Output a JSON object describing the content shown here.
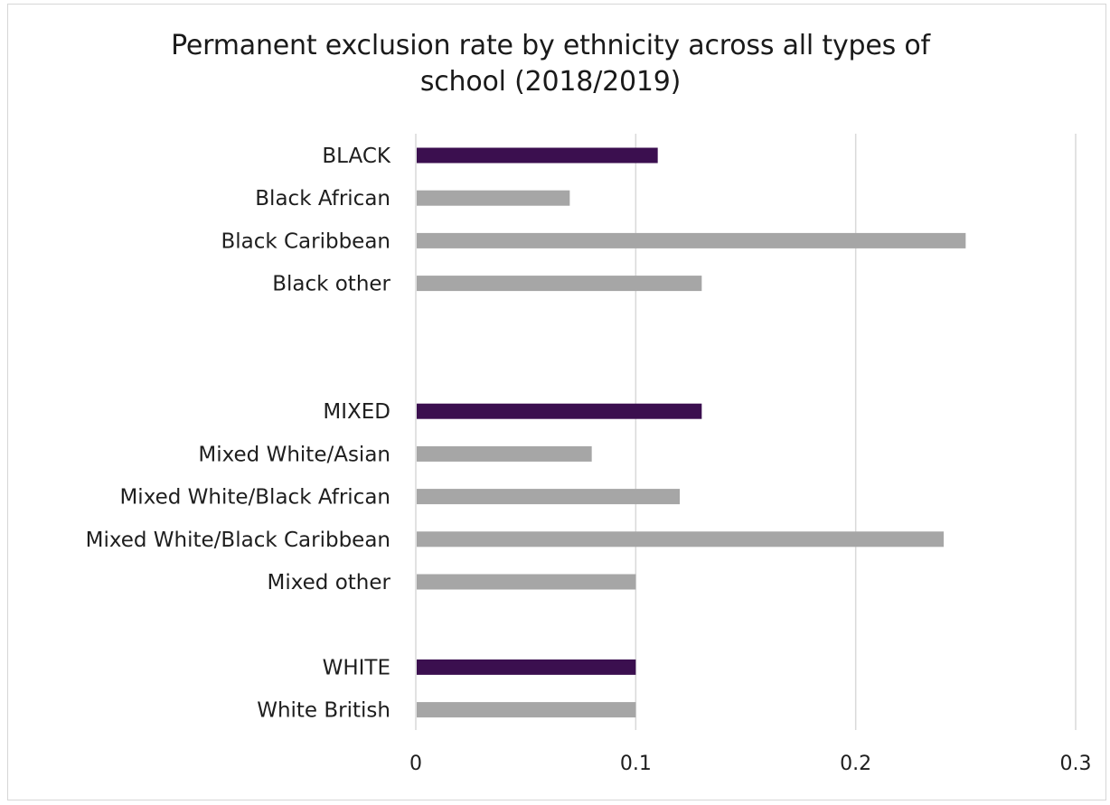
{
  "chart_data": {
    "type": "bar",
    "orientation": "horizontal",
    "title": "Permanent exclusion rate by ethnicity across all types of school (2018/2019)",
    "title_lines": [
      "Permanent exclusion rate by ethnicity across all types of",
      "school (2018/2019)"
    ],
    "xlabel": "",
    "ylabel": "",
    "xlim": [
      0,
      0.3
    ],
    "x_ticks": [
      "0",
      "0.1",
      "0.2",
      "0.3"
    ],
    "x_tick_values": [
      0,
      0.1,
      0.2,
      0.3
    ],
    "grid": "vertical",
    "categories": [
      "BLACK",
      "Black African",
      "Black Caribbean",
      "Black other",
      "",
      "",
      "MIXED",
      "Mixed White/Asian",
      "Mixed White/Black African",
      "Mixed White/Black Caribbean",
      "Mixed other",
      "",
      "WHITE",
      "White British"
    ],
    "values": [
      0.11,
      0.07,
      0.25,
      0.13,
      null,
      null,
      0.13,
      0.08,
      0.12,
      0.24,
      0.1,
      null,
      0.1,
      0.1
    ],
    "is_group_total": [
      true,
      false,
      false,
      false,
      false,
      false,
      true,
      false,
      false,
      false,
      false,
      false,
      true,
      false
    ],
    "colors": {
      "group_total": "#3b0f4f",
      "subgroup": "#a6a6a6",
      "gridline": "#d9d9d9",
      "text": "#1e1e1e"
    }
  }
}
